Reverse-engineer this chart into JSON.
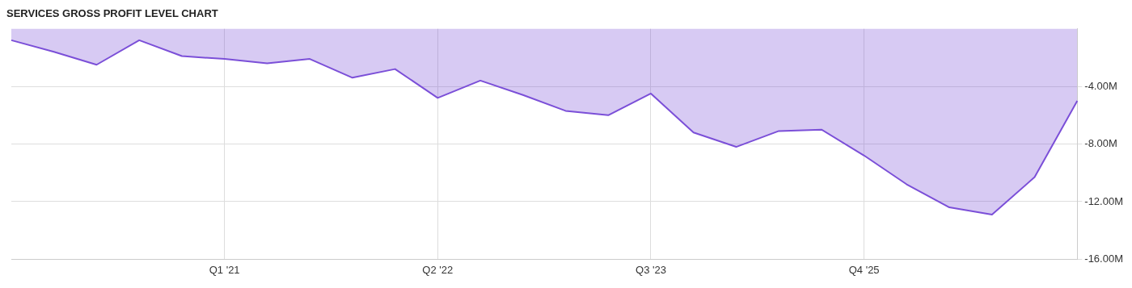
{
  "chart_data": {
    "type": "area",
    "title": "SERVICES GROSS PROFIT LEVEL CHART",
    "categories": [
      null,
      null,
      null,
      null,
      null,
      "Q1 '21",
      null,
      null,
      null,
      null,
      "Q2 '22",
      null,
      null,
      null,
      null,
      "Q3 '23",
      null,
      null,
      null,
      null,
      "Q4 '25",
      null,
      null,
      null,
      null,
      null
    ],
    "series": [
      {
        "color": "#7b4fd8",
        "values": [
          -0.8,
          -1.6,
          -2.5,
          -0.8,
          -1.9,
          -2.1,
          -2.4,
          -2.1,
          -3.4,
          -2.8,
          -4.8,
          -3.6,
          -4.6,
          -5.7,
          -6.0,
          -4.5,
          -7.2,
          -8.2,
          -7.1,
          -7.0,
          -8.8,
          -10.8,
          -12.4,
          -12.9,
          -10.3,
          -5.0
        ]
      }
    ],
    "ylim": [
      -16,
      0
    ],
    "yticks": [
      {
        "value": -4,
        "label": "-4.00M"
      },
      {
        "value": -8,
        "label": "-8.00M"
      },
      {
        "value": -12,
        "label": "-12.00M"
      },
      {
        "value": -16,
        "label": "-16.00M"
      }
    ],
    "grid": true,
    "legend": false
  }
}
